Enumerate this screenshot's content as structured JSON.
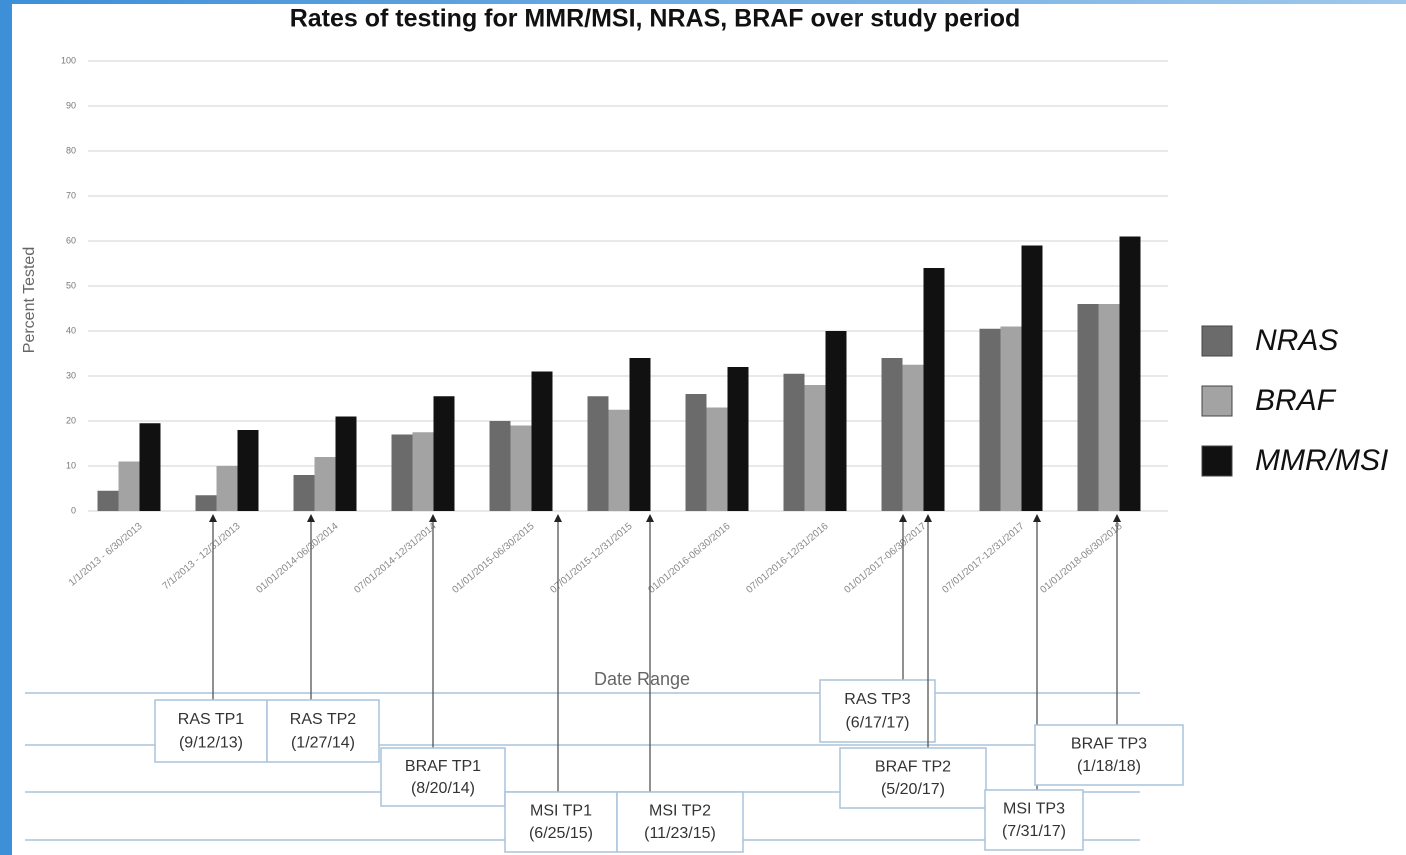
{
  "chart_data": {
    "type": "bar",
    "title": "Rates of testing for MMR/MSI, NRAS, BRAF over study period",
    "x_label": "Date Range",
    "y_label": "Percent Tested",
    "categories": [
      "1/1/2013 - 6/30/2013",
      "7/1/2013 - 12/31/2013",
      "01/01/2014-06/30/2014",
      "07/01/2014-12/31/2014",
      "01/01/2015-06/30/2015",
      "07/01/2015-12/31/2015",
      "01/01/2016-06/30/2016",
      "07/01/2016-12/31/2016",
      "01/01/2017-06/30/2017",
      "07/01/2017-12/31/2017",
      "01/01/2018-06/30/2018"
    ],
    "series": [
      {
        "name": "NRAS",
        "color": "#6b6b6b",
        "values": [
          4.5,
          3.5,
          8,
          17,
          20,
          25.5,
          26,
          30.5,
          34,
          40.5,
          46
        ]
      },
      {
        "name": "BRAF",
        "color": "#a3a3a3",
        "values": [
          11,
          10,
          12,
          17.5,
          19,
          22.5,
          23,
          28,
          32.5,
          41,
          46
        ]
      },
      {
        "name": "MMR/MSI",
        "color": "#111111",
        "values": [
          19.5,
          18,
          21,
          25.5,
          31,
          34,
          32,
          40,
          54,
          59,
          61
        ]
      }
    ],
    "ylim": [
      0,
      100
    ],
    "yticks": [
      0,
      10,
      20,
      30,
      40,
      50,
      60,
      70,
      80,
      90,
      100
    ],
    "grid": true,
    "legend": "right",
    "annotations": [
      {
        "label": "RAS TP1",
        "date": "(9/12/13)"
      },
      {
        "label": "RAS TP2",
        "date": "(1/27/14)"
      },
      {
        "label": "BRAF TP1",
        "date": "(8/20/14)"
      },
      {
        "label": "MSI TP1",
        "date": "(6/25/15)"
      },
      {
        "label": "MSI TP2",
        "date": "(11/23/15)"
      },
      {
        "label": "RAS TP3",
        "date": "(6/17/17)"
      },
      {
        "label": "BRAF TP2",
        "date": "(5/20/17)"
      },
      {
        "label": "MSI TP3",
        "date": "(7/31/17)"
      },
      {
        "label": "BRAF TP3",
        "date": "(1/18/18)"
      }
    ]
  }
}
